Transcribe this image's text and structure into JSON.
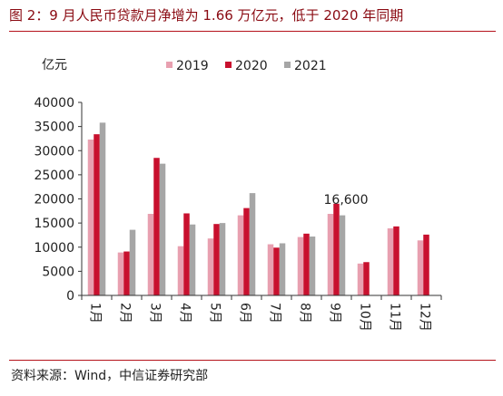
{
  "header": {
    "title": "图 2：9 月人民币贷款月净增为 1.66 万亿元，低于 2020 年同期"
  },
  "footer": {
    "source": "资料来源：Wind，中信证券研究部"
  },
  "chart_data": {
    "type": "bar",
    "title": "",
    "xlabel": "",
    "ylabel": "亿元",
    "ylim": [
      0,
      40000
    ],
    "yticks": [
      0,
      5000,
      10000,
      15000,
      20000,
      25000,
      30000,
      35000,
      40000
    ],
    "categories": [
      "1月",
      "2月",
      "3月",
      "4月",
      "5月",
      "6月",
      "7月",
      "8月",
      "9月",
      "10月",
      "11月",
      "12月"
    ],
    "legend_position": "top",
    "grid": false,
    "series": [
      {
        "name": "2019",
        "color": "#e8a0b0",
        "values": [
          32300,
          8900,
          16900,
          10200,
          11800,
          16600,
          10600,
          12100,
          16900,
          6600,
          13900,
          11400
        ]
      },
      {
        "name": "2020",
        "color": "#c8102e",
        "values": [
          33400,
          9100,
          28500,
          17000,
          14800,
          18100,
          9900,
          12800,
          19000,
          6900,
          14300,
          12600
        ]
      },
      {
        "name": "2021",
        "color": "#a6a6a6",
        "values": [
          35800,
          13600,
          27300,
          14700,
          15000,
          21200,
          10800,
          12200,
          16600,
          null,
          null,
          null
        ]
      }
    ],
    "annotations": [
      {
        "text": "16,600"
      }
    ]
  }
}
